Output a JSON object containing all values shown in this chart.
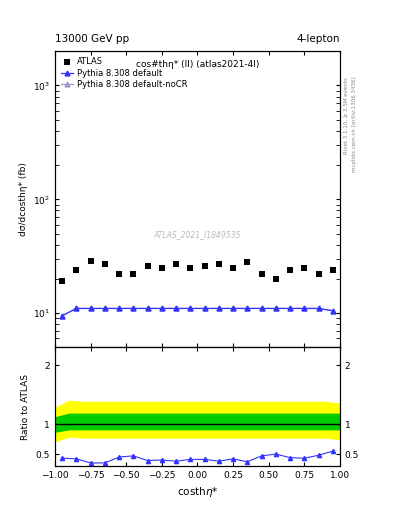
{
  "top_left_label": "13000 GeV pp",
  "top_right_label": "4-lepton",
  "right_label_top": "Rivet 3.1.10, ≥ 3.5M events",
  "right_label_bottom": "mcplots.cern.ch [arXiv:1306.3436]",
  "watermark": "ATLAS_2021_I1849535",
  "plot_title": "cos#thη* (ll) (atlas2021-4l)",
  "xlabel": "costhη*",
  "ylabel_main": "dσ/dcosthη* (fb)",
  "ylabel_ratio": "Ratio to ATLAS",
  "atlas_x": [
    -0.95,
    -0.85,
    -0.75,
    -0.65,
    -0.55,
    -0.45,
    -0.35,
    -0.25,
    -0.15,
    -0.05,
    0.05,
    0.15,
    0.25,
    0.35,
    0.45,
    0.55,
    0.65,
    0.75,
    0.85,
    0.95
  ],
  "atlas_y": [
    19.0,
    24.0,
    29.0,
    27.0,
    22.0,
    22.0,
    26.0,
    25.0,
    27.0,
    25.0,
    26.0,
    27.0,
    25.0,
    28.0,
    22.0,
    20.0,
    24.0,
    25.0,
    22.0,
    24.0
  ],
  "pythia_default_x": [
    -0.95,
    -0.85,
    -0.75,
    -0.65,
    -0.55,
    -0.45,
    -0.35,
    -0.25,
    -0.15,
    -0.05,
    0.05,
    0.15,
    0.25,
    0.35,
    0.45,
    0.55,
    0.65,
    0.75,
    0.85,
    0.95
  ],
  "pythia_default_y": [
    9.5,
    11.0,
    11.0,
    11.0,
    11.0,
    11.0,
    11.0,
    11.0,
    11.0,
    11.0,
    11.0,
    11.0,
    11.0,
    11.0,
    11.0,
    11.0,
    11.0,
    11.0,
    11.0,
    10.5
  ],
  "pythia_nocr_x": [
    -0.95,
    -0.85,
    -0.75,
    -0.65,
    -0.55,
    -0.45,
    -0.35,
    -0.25,
    -0.15,
    -0.05,
    0.05,
    0.15,
    0.25,
    0.35,
    0.45,
    0.55,
    0.65,
    0.75,
    0.85,
    0.95
  ],
  "pythia_nocr_y": [
    9.5,
    11.0,
    11.0,
    11.0,
    11.0,
    11.0,
    11.0,
    11.0,
    11.0,
    11.0,
    11.0,
    11.0,
    11.0,
    11.0,
    11.0,
    11.0,
    11.0,
    11.0,
    11.0,
    10.5
  ],
  "ratio_default_x": [
    -0.95,
    -0.85,
    -0.75,
    -0.65,
    -0.55,
    -0.45,
    -0.35,
    -0.25,
    -0.15,
    -0.05,
    0.05,
    0.15,
    0.25,
    0.35,
    0.45,
    0.55,
    0.65,
    0.75,
    0.85,
    0.95
  ],
  "ratio_default_y": [
    0.43,
    0.42,
    0.35,
    0.35,
    0.45,
    0.47,
    0.39,
    0.4,
    0.38,
    0.41,
    0.41,
    0.38,
    0.42,
    0.37,
    0.47,
    0.5,
    0.44,
    0.43,
    0.48,
    0.55
  ],
  "band_green_x": [
    -1.0,
    -0.9,
    -0.8,
    -0.7,
    -0.6,
    -0.5,
    -0.4,
    -0.3,
    -0.2,
    -0.1,
    0.0,
    0.1,
    0.2,
    0.3,
    0.4,
    0.5,
    0.6,
    0.7,
    0.8,
    0.9,
    1.0
  ],
  "band_green_low": [
    0.88,
    0.92,
    0.92,
    0.92,
    0.92,
    0.92,
    0.92,
    0.92,
    0.92,
    0.92,
    0.92,
    0.92,
    0.92,
    0.92,
    0.92,
    0.92,
    0.92,
    0.92,
    0.92,
    0.92,
    0.92
  ],
  "band_green_high": [
    1.12,
    1.18,
    1.18,
    1.18,
    1.18,
    1.18,
    1.18,
    1.18,
    1.18,
    1.18,
    1.18,
    1.18,
    1.18,
    1.18,
    1.18,
    1.18,
    1.18,
    1.18,
    1.18,
    1.18,
    1.18
  ],
  "band_yellow_low": [
    0.72,
    0.8,
    0.78,
    0.78,
    0.78,
    0.78,
    0.78,
    0.78,
    0.78,
    0.78,
    0.78,
    0.78,
    0.78,
    0.78,
    0.78,
    0.78,
    0.78,
    0.78,
    0.78,
    0.78,
    0.75
  ],
  "band_yellow_high": [
    1.28,
    1.4,
    1.38,
    1.38,
    1.38,
    1.38,
    1.38,
    1.38,
    1.38,
    1.38,
    1.38,
    1.38,
    1.38,
    1.38,
    1.38,
    1.38,
    1.38,
    1.38,
    1.38,
    1.38,
    1.35
  ],
  "ylim_main": [
    5,
    2000
  ],
  "ylim_ratio": [
    0.3,
    2.3
  ],
  "xlim": [
    -1.0,
    1.0
  ],
  "color_atlas": "#000000",
  "color_pythia_default": "#3333ff",
  "color_pythia_nocr": "#9999cc",
  "color_green_band": "#00cc00",
  "color_yellow_band": "#ffff00",
  "marker_atlas": "s",
  "marker_pythia": "^",
  "legend_entries": [
    "ATLAS",
    "Pythia 8.308 default",
    "Pythia 8.308 default-noCR"
  ]
}
